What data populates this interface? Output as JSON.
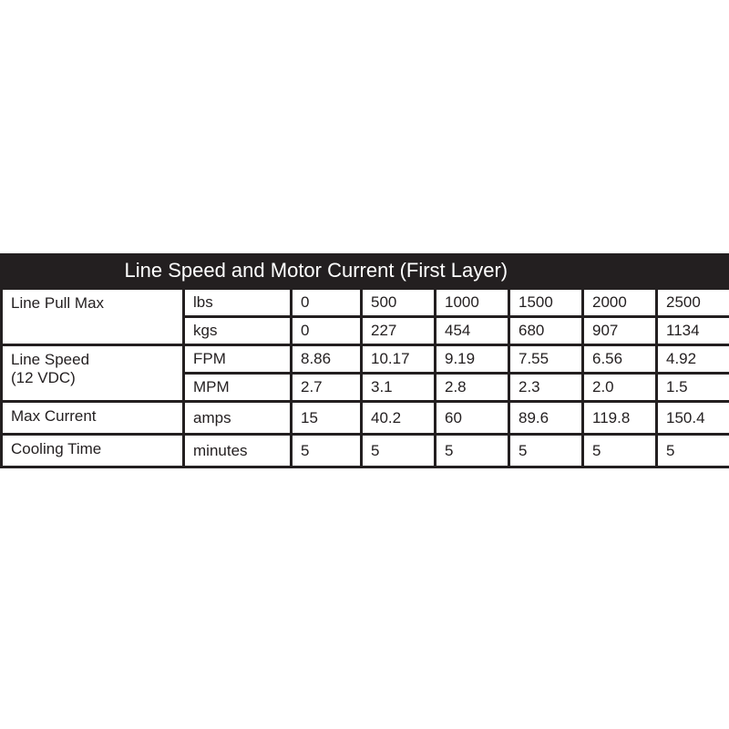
{
  "table": {
    "title": "Line Speed and Motor Current (First Layer)",
    "groups": {
      "line_pull": "Line Pull Max",
      "line_speed_1": "Line Speed",
      "line_speed_2": "(12 VDC)",
      "max_current": "Max Current",
      "cooling": "Cooling Time"
    },
    "rows": [
      {
        "unit": "lbs",
        "values": [
          "0",
          "500",
          "1000",
          "1500",
          "2000",
          "2500"
        ]
      },
      {
        "unit": "kgs",
        "values": [
          "0",
          "227",
          "454",
          "680",
          "907",
          "1134"
        ]
      },
      {
        "unit": "FPM",
        "values": [
          "8.86",
          "10.17",
          "9.19",
          "7.55",
          "6.56",
          "4.92"
        ]
      },
      {
        "unit": "MPM",
        "values": [
          "2.7",
          "3.1",
          "2.8",
          "2.3",
          "2.0",
          "1.5"
        ]
      },
      {
        "unit": "amps",
        "values": [
          "15",
          "40.2",
          "60",
          "89.6",
          "119.8",
          "150.4"
        ]
      },
      {
        "unit": "minutes",
        "values": [
          "5",
          "5",
          "5",
          "5",
          "5",
          "5"
        ]
      }
    ]
  },
  "colors": {
    "header_bg": "#231f20",
    "header_text": "#ffffff",
    "grid": "#231f20"
  }
}
